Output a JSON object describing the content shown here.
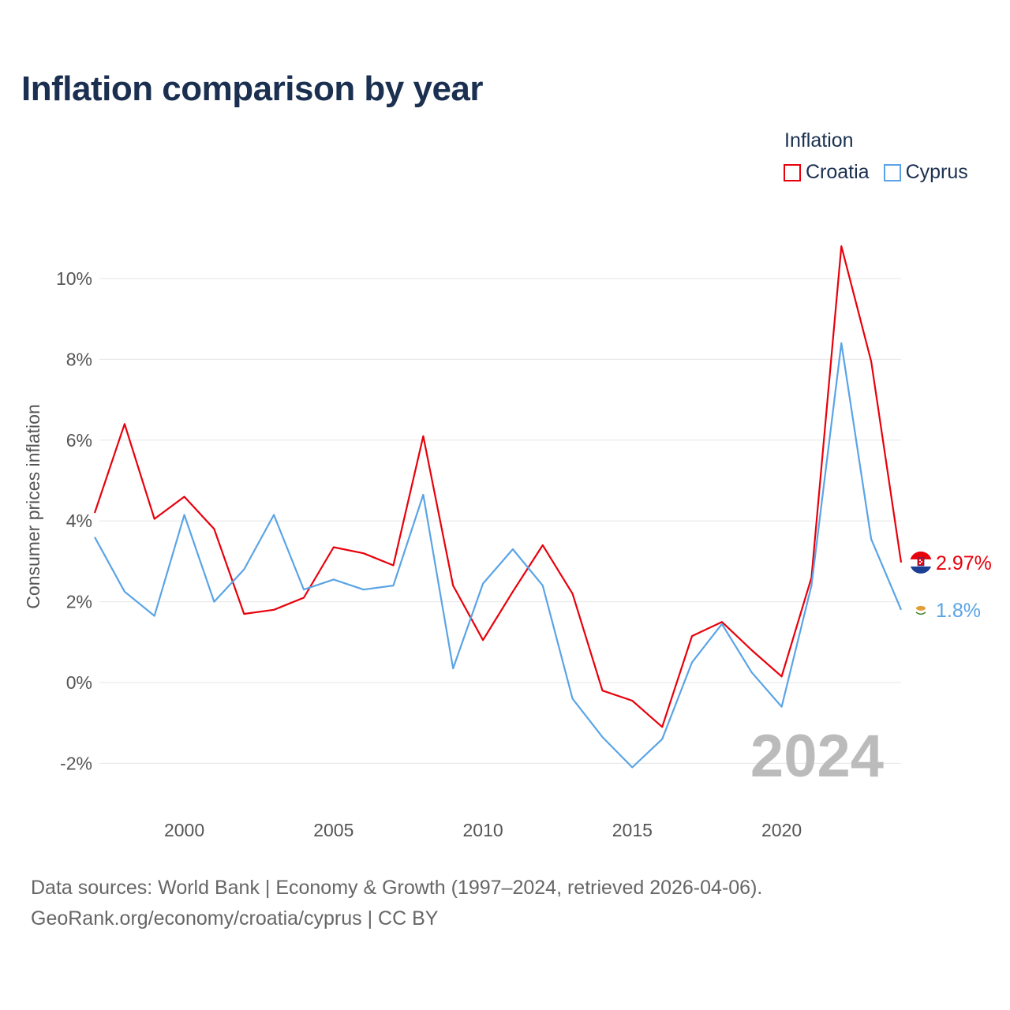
{
  "chart_data": {
    "type": "line",
    "title": "Inflation comparison by year",
    "legend_title": "Inflation",
    "legend_position": "top-right",
    "xlabel": "",
    "ylabel": "Consumer prices inflation",
    "x": [
      1997,
      1998,
      1999,
      2000,
      2001,
      2002,
      2003,
      2004,
      2005,
      2006,
      2007,
      2008,
      2009,
      2010,
      2011,
      2012,
      2013,
      2014,
      2015,
      2016,
      2017,
      2018,
      2019,
      2020,
      2021,
      2022,
      2023,
      2024
    ],
    "xlim": [
      1997,
      2024
    ],
    "ylim": [
      -3,
      11
    ],
    "x_ticks": [
      2000,
      2005,
      2010,
      2015,
      2020
    ],
    "x_tick_labels": [
      "2000",
      "2005",
      "2010",
      "2015",
      "2020"
    ],
    "y_ticks": [
      -2,
      0,
      2,
      4,
      6,
      8,
      10
    ],
    "y_tick_labels": [
      "-2%",
      "0%",
      "2%",
      "4%",
      "6%",
      "8%",
      "10%"
    ],
    "grid": true,
    "watermark_year": "2024",
    "series": [
      {
        "name": "Croatia",
        "color": "#e8000b",
        "end_label": "2.97%",
        "flag_icon": "croatia-flag-icon",
        "values": [
          4.2,
          6.4,
          4.05,
          4.6,
          3.8,
          1.7,
          1.8,
          2.1,
          3.35,
          3.2,
          2.9,
          6.1,
          2.4,
          1.05,
          2.25,
          3.4,
          2.2,
          -0.2,
          -0.45,
          -1.1,
          1.15,
          1.5,
          0.8,
          0.15,
          2.6,
          10.8,
          7.95,
          2.97
        ]
      },
      {
        "name": "Cyprus",
        "color": "#5aa4e6",
        "end_label": "1.8%",
        "flag_icon": "cyprus-flag-icon",
        "values": [
          3.6,
          2.25,
          1.65,
          4.15,
          2.0,
          2.8,
          4.15,
          2.3,
          2.55,
          2.3,
          2.4,
          4.65,
          0.35,
          2.45,
          3.3,
          2.4,
          -0.4,
          -1.35,
          -2.1,
          -1.4,
          0.5,
          1.45,
          0.25,
          -0.6,
          2.4,
          8.4,
          3.55,
          1.8
        ]
      }
    ]
  },
  "source": {
    "line1": "Data sources: World Bank | Economy & Growth (1997–2024, retrieved 2026-04-06).",
    "line2": "GeoRank.org/economy/croatia/cyprus | CC BY"
  }
}
